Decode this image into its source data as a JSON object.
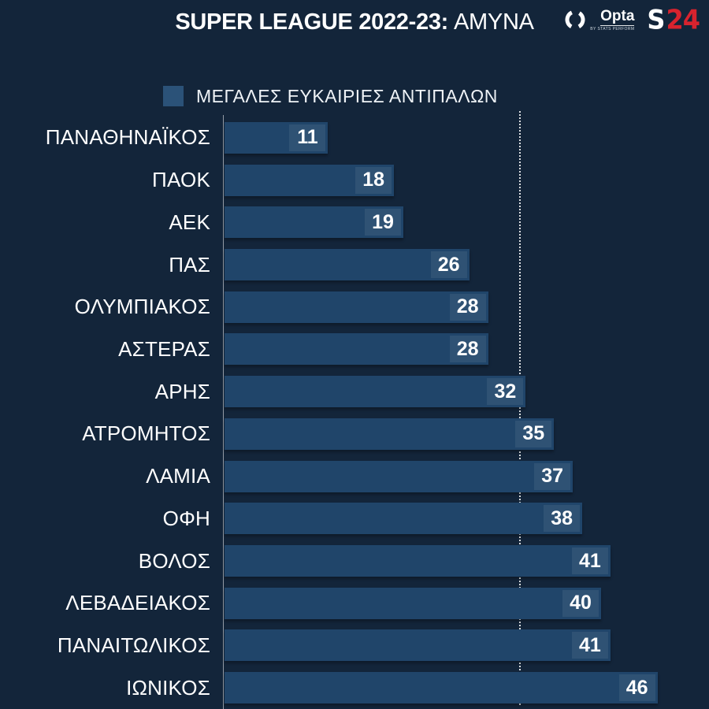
{
  "header": {
    "title_bold": "SUPER LEAGUE 2022-23:",
    "title_regular": "ΑΜΥΝΑ",
    "opta_text": "Opta",
    "opta_subtext": "BY STATS PERFORM",
    "s24_s": "S",
    "s24_24": "24"
  },
  "legend": {
    "label": "ΜΕΓΑΛΕΣ ΕΥΚΑΙΡΙΕΣ ΑΝΤΙΠΑΛΩΝ"
  },
  "colors": {
    "background": "#13253A",
    "bar": "#20456A",
    "legend_swatch": "#2B5278",
    "accent_red": "#D8232E",
    "text": "#FFFFFF",
    "reference_line": "#FFFFFF"
  },
  "chart_data": {
    "type": "bar",
    "orientation": "horizontal",
    "title": "SUPER LEAGUE 2022-23: ΑΜΥΝΑ",
    "legend_entries": [
      "ΜΕΓΑΛΕΣ ΕΥΚΑΙΡΙΕΣ ΑΝΤΙΠΑΛΩΝ"
    ],
    "categories": [
      "ΠΑΝΑΘΗΝΑΪΚΟΣ",
      "ΠΑΟΚ",
      "ΑΕΚ",
      "ΠΑΣ",
      "ΟΛΥΜΠΙΑΚΟΣ",
      "ΑΣΤΕΡΑΣ",
      "ΑΡΗΣ",
      "ΑΤΡΟΜΗΤΟΣ",
      "ΛΑΜΙΑ",
      "ΟΦΗ",
      "ΒΟΛΟΣ",
      "ΛΕΒΑΔΕΙΑΚΟΣ",
      "ΠΑΝΑΙΤΩΛΙΚΟΣ",
      "ΙΩΝΙΚΟΣ"
    ],
    "values": [
      11,
      18,
      19,
      26,
      28,
      28,
      32,
      35,
      37,
      38,
      41,
      40,
      41,
      46
    ],
    "value_labels_shown": true,
    "xlim": [
      0,
      51.5
    ],
    "reference_line_value": 31.4,
    "reference_line_style": "dotted-vertical",
    "grid": "off",
    "legend_position": "top-left-above-plot"
  }
}
